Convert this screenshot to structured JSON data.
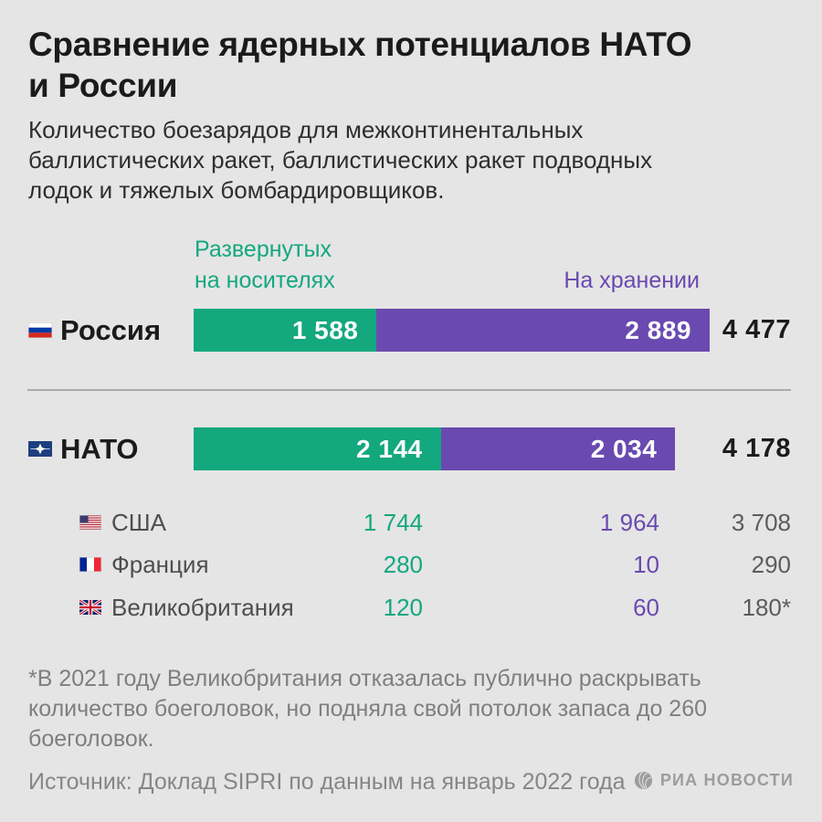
{
  "header": {
    "title": "Сравнение ядерных потенциалов НАТО\nи России",
    "subtitle": "Количество боезарядов для межконтинентальных\nбаллистических ракет, баллистических ракет подводных\nлодок и тяжелых бомбардировщиков."
  },
  "legend": {
    "deployed": "Развернутых\nна носителях",
    "stored": "На хранении"
  },
  "colors": {
    "background": "#e5e5e5",
    "deployed_green": "#14a87e",
    "stored_purple": "#6a4ab0",
    "title_text": "#1b1b1b",
    "subrow_text": "#4e4e4e",
    "muted_text": "#7f7f7f",
    "divider": "#ababab"
  },
  "chart_data": {
    "type": "bar",
    "orientation": "horizontal",
    "stacked": true,
    "title": "Сравнение ядерных потенциалов НАТО и России",
    "legend_entries": [
      "Развернутых на носителях",
      "На хранении"
    ],
    "legend_position": "top",
    "grid": false,
    "xmax": 4477,
    "rows": [
      {
        "label": "Россия",
        "flag": "russia",
        "display": "bar",
        "deployed": 1588,
        "stored": 2889,
        "total": 4477,
        "deployed_label": "1 588",
        "stored_label": "2 889",
        "total_label": "4 477"
      },
      {
        "label": "НАТО",
        "flag": "nato",
        "display": "bar",
        "deployed": 2144,
        "stored": 2034,
        "total": 4178,
        "deployed_label": "2 144",
        "stored_label": "2 034",
        "total_label": "4 178"
      },
      {
        "label": "США",
        "flag": "usa",
        "display": "text",
        "deployed": 1744,
        "stored": 1964,
        "total": 3708,
        "deployed_label": "1 744",
        "stored_label": "1 964",
        "total_label": "3 708"
      },
      {
        "label": "Франция",
        "flag": "france",
        "display": "text",
        "deployed": 280,
        "stored": 10,
        "total": 290,
        "deployed_label": "280",
        "stored_label": "10",
        "total_label": "290"
      },
      {
        "label": "Великобритания",
        "flag": "uk",
        "display": "text",
        "deployed": 120,
        "stored": 60,
        "total": 180,
        "deployed_label": "120",
        "stored_label": "60",
        "total_label": "180*"
      }
    ]
  },
  "footer": {
    "footnote": "*В 2021 году Великобритания отказалась публично раскрывать\nколичество боеголовок, но подняла свой потолок запаса до 260\nбоеголовок.",
    "source": "Источник: Доклад SIPRI по данным на январь 2022 года",
    "brand": "РИА НОВОСТИ"
  }
}
